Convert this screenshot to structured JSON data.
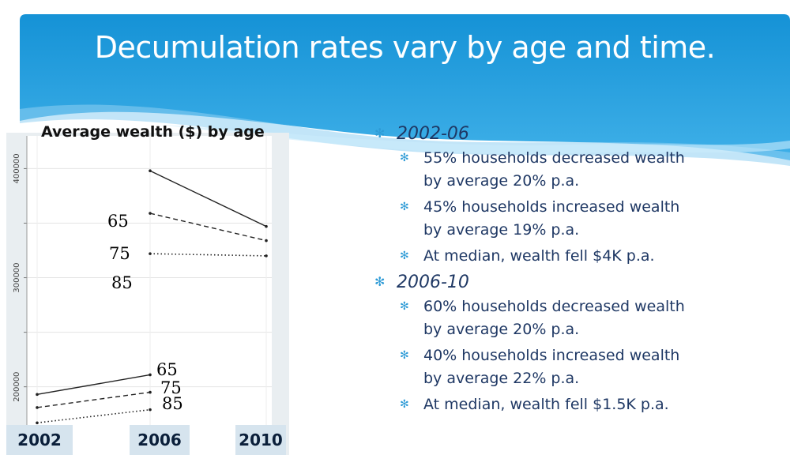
{
  "title": "Decumulation rates vary by age and time.",
  "colors": {
    "banner": "#1a9ad9",
    "bullet": "#2e9bd6",
    "text": "#1f3864"
  },
  "chart_data": {
    "type": "line",
    "title": "Average wealth ($) by age",
    "x_labels": [
      "2002",
      "2006",
      "2010"
    ],
    "ylim": [
      165000,
      430000
    ],
    "y_ticks": [
      200000,
      300000,
      400000
    ],
    "y_tick_labels": [
      "200000",
      "300000",
      "400000"
    ],
    "series": [
      {
        "name": "65",
        "segments": [
          {
            "x": [
              2002,
              2006
            ],
            "y": [
              193000,
              211000
            ]
          },
          {
            "x": [
              2006,
              2010
            ],
            "y": [
              398000,
              347000
            ]
          }
        ]
      },
      {
        "name": "75",
        "segments": [
          {
            "x": [
              2002,
              2006
            ],
            "y": [
              181000,
              195000
            ]
          },
          {
            "x": [
              2006,
              2010
            ],
            "y": [
              359000,
              334000
            ]
          }
        ]
      },
      {
        "name": "85",
        "segments": [
          {
            "x": [
              2002,
              2006
            ],
            "y": [
              167000,
              179000
            ]
          },
          {
            "x": [
              2006,
              2010
            ],
            "y": [
              322000,
              320000
            ]
          }
        ]
      }
    ],
    "grid": true
  },
  "bullets": [
    {
      "heading": "2002-06",
      "items": [
        {
          "line1": "55%  households decreased wealth",
          "line2": "by average 20% p.a."
        },
        {
          "line1": "45% households increased wealth",
          "line2": "by average 19% p.a."
        },
        {
          "line1": "At median, wealth fell $4K p.a.",
          "line2": ""
        }
      ]
    },
    {
      "heading": "2006-10",
      "items": [
        {
          "line1": "60%  households decreased wealth",
          "line2": "by average 20% p.a."
        },
        {
          "line1": "40% households increased wealth",
          "line2": "by average 22% p.a."
        },
        {
          "line1": "At median, wealth fell $1.5K p.a.",
          "line2": ""
        }
      ]
    }
  ]
}
